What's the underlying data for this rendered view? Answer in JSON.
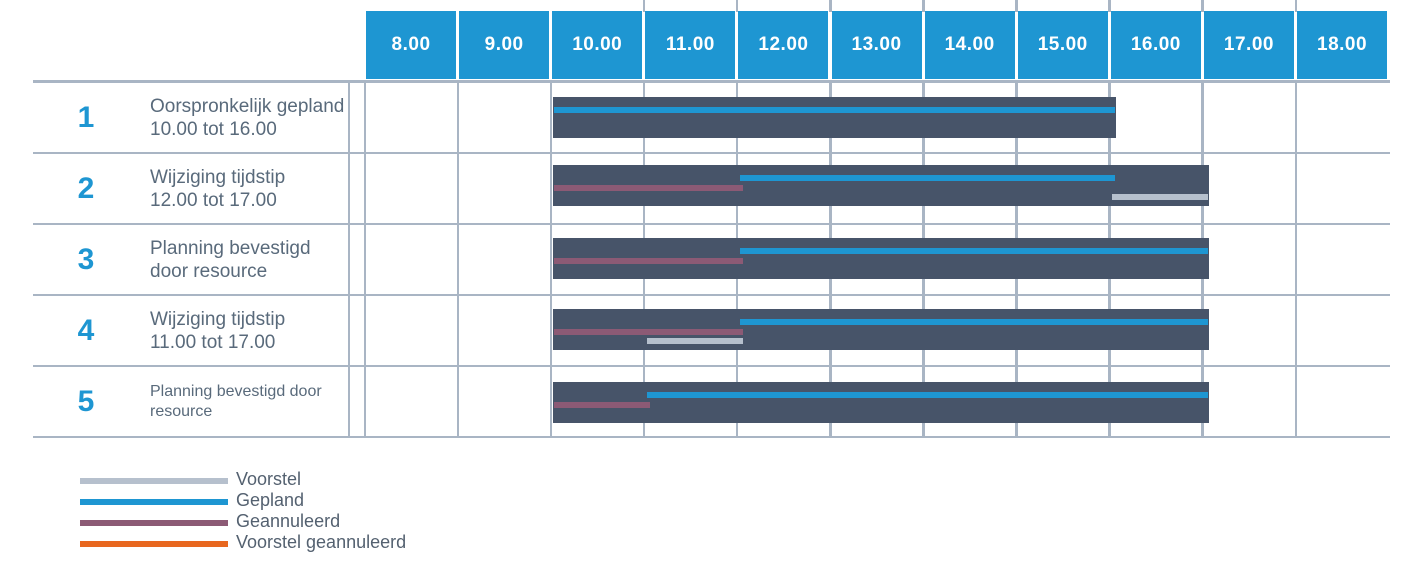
{
  "colors": {
    "header_blue": "#1e96d2",
    "bar_dark": "#475469",
    "gepland": "#1e96d2",
    "geannuleerd": "#8c5a75",
    "voorstel": "#b6c0cd",
    "voorstel_geannuleerd": "#e8671f",
    "gridline": "#a9b5c4",
    "row_number": "#1e96d2",
    "label_text": "#596a7b",
    "legend_text": "#546170"
  },
  "chart_data": {
    "type": "gantt",
    "x_axis": {
      "unit": "hours",
      "range": [
        8,
        18
      ],
      "tick_labels": [
        "8.00",
        "9.00",
        "10.00",
        "11.00",
        "12.00",
        "13.00",
        "14.00",
        "15.00",
        "16.00",
        "17.00",
        "18.00"
      ]
    },
    "rows": [
      {
        "num": "1",
        "label_lines": [
          "Oorspronkelijk gepland",
          "10.00 tot 16.00"
        ],
        "small_label": false,
        "bar": {
          "start": 10,
          "end": 16
        },
        "segments": [
          {
            "kind": "gepland",
            "start": 10,
            "end": 16
          }
        ]
      },
      {
        "num": "2",
        "label_lines": [
          "Wijziging tijdstip",
          "12.00 tot 17.00"
        ],
        "small_label": false,
        "bar": {
          "start": 10,
          "end": 17
        },
        "segments": [
          {
            "kind": "gepland",
            "start": 12,
            "end": 16
          },
          {
            "kind": "geannuleerd",
            "start": 10,
            "end": 12
          },
          {
            "kind": "voorstel",
            "start": 16,
            "end": 17
          }
        ]
      },
      {
        "num": "3",
        "label_lines": [
          "Planning bevestigd",
          "door resource"
        ],
        "small_label": false,
        "bar": {
          "start": 10,
          "end": 17
        },
        "segments": [
          {
            "kind": "gepland",
            "start": 12,
            "end": 17
          },
          {
            "kind": "geannuleerd",
            "start": 10,
            "end": 12
          }
        ]
      },
      {
        "num": "4",
        "label_lines": [
          "Wijziging tijdstip",
          "11.00 tot 17.00"
        ],
        "small_label": false,
        "bar": {
          "start": 10,
          "end": 17
        },
        "segments": [
          {
            "kind": "gepland",
            "start": 12,
            "end": 17
          },
          {
            "kind": "geannuleerd",
            "start": 10,
            "end": 12
          },
          {
            "kind": "voorstel",
            "start": 11,
            "end": 12
          }
        ]
      },
      {
        "num": "5",
        "label_lines": [
          "Planning bevestigd door",
          "resource"
        ],
        "small_label": true,
        "bar": {
          "start": 10,
          "end": 17
        },
        "segments": [
          {
            "kind": "gepland",
            "start": 11,
            "end": 17
          },
          {
            "kind": "geannuleerd",
            "start": 10,
            "end": 11
          }
        ]
      }
    ],
    "legend": [
      {
        "label": "Voorstel",
        "kind": "voorstel"
      },
      {
        "label": "Gepland",
        "kind": "gepland"
      },
      {
        "label": "Geannuleerd",
        "kind": "geannuleerd"
      },
      {
        "label": "Voorstel geannuleerd",
        "kind": "voorstel_geannuleerd"
      }
    ]
  }
}
